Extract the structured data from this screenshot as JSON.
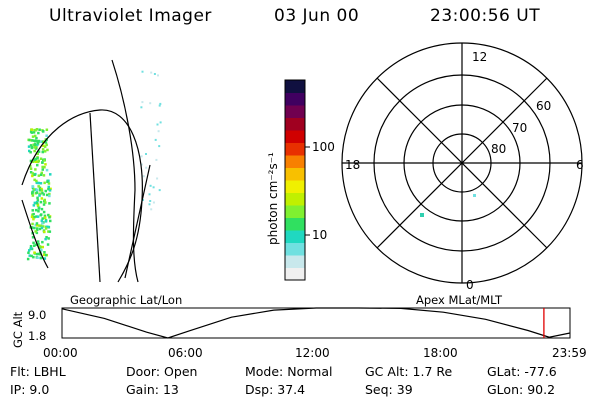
{
  "header": {
    "instrument": "Ultraviolet Imager",
    "date": "03 Jun 00",
    "time": "23:00:56 UT"
  },
  "panels": {
    "geo_label": "Geographic Lat/Lon",
    "apex_label": "Apex MLat/MLT"
  },
  "colorbar": {
    "unit_label": "photon cm⁻²s⁻¹",
    "scale": "log",
    "ticks": [
      "100",
      "10"
    ],
    "colors": [
      "#f0f0f0",
      "#c8e8ec",
      "#70e0e0",
      "#20d8c0",
      "#30e060",
      "#80f030",
      "#c0f000",
      "#f0f000",
      "#f8c000",
      "#f88000",
      "#e83000",
      "#d00000",
      "#a00020",
      "#700050",
      "#400060",
      "#101040"
    ]
  },
  "polar": {
    "mlt_labels": {
      "top": "12",
      "left": "18",
      "right": "6",
      "bottom": "0"
    },
    "lat_labels": [
      "60",
      "70",
      "80"
    ]
  },
  "altitude_plot": {
    "ylabel": "GC Alt",
    "yticks": [
      "9.0",
      "1.8"
    ],
    "xticks": [
      "00:00",
      "06:00",
      "12:00",
      "18:00",
      "23:59"
    ],
    "marker_color": "#e00000",
    "chart_data": {
      "type": "line",
      "xlabel": "",
      "ylabel": "GC Alt",
      "ylim": [
        1.8,
        9.0
      ],
      "x": [
        "00:00",
        "02:00",
        "04:00",
        "05:00",
        "06:00",
        "08:00",
        "10:00",
        "12:00",
        "14:00",
        "16:00",
        "18:00",
        "20:00",
        "22:00",
        "23:00",
        "23:59"
      ],
      "values": [
        8.8,
        6.5,
        3.2,
        1.8,
        3.5,
        6.8,
        8.5,
        9.1,
        9.2,
        8.9,
        8.0,
        6.3,
        3.6,
        2.0,
        3.0
      ],
      "marker_time": "22:45"
    }
  },
  "status": {
    "flt_label": "Flt:",
    "flt_value": "LBHL",
    "ip_label": "IP:",
    "ip_value": "9.0",
    "door_label": "Door:",
    "door_value": "Open",
    "gain_label": "Gain:",
    "gain_value": "13",
    "mode_label": "Mode:",
    "mode_value": "Normal",
    "dsp_label": "Dsp:",
    "dsp_value": "37.4",
    "gcalt_label": "GC Alt:",
    "gcalt_value": "1.7 Re",
    "seq_label": "Seq:",
    "seq_value": "39",
    "glat_label": "GLat:",
    "glat_value": "-77.6",
    "glon_label": "GLon:",
    "glon_value": "90.2"
  }
}
